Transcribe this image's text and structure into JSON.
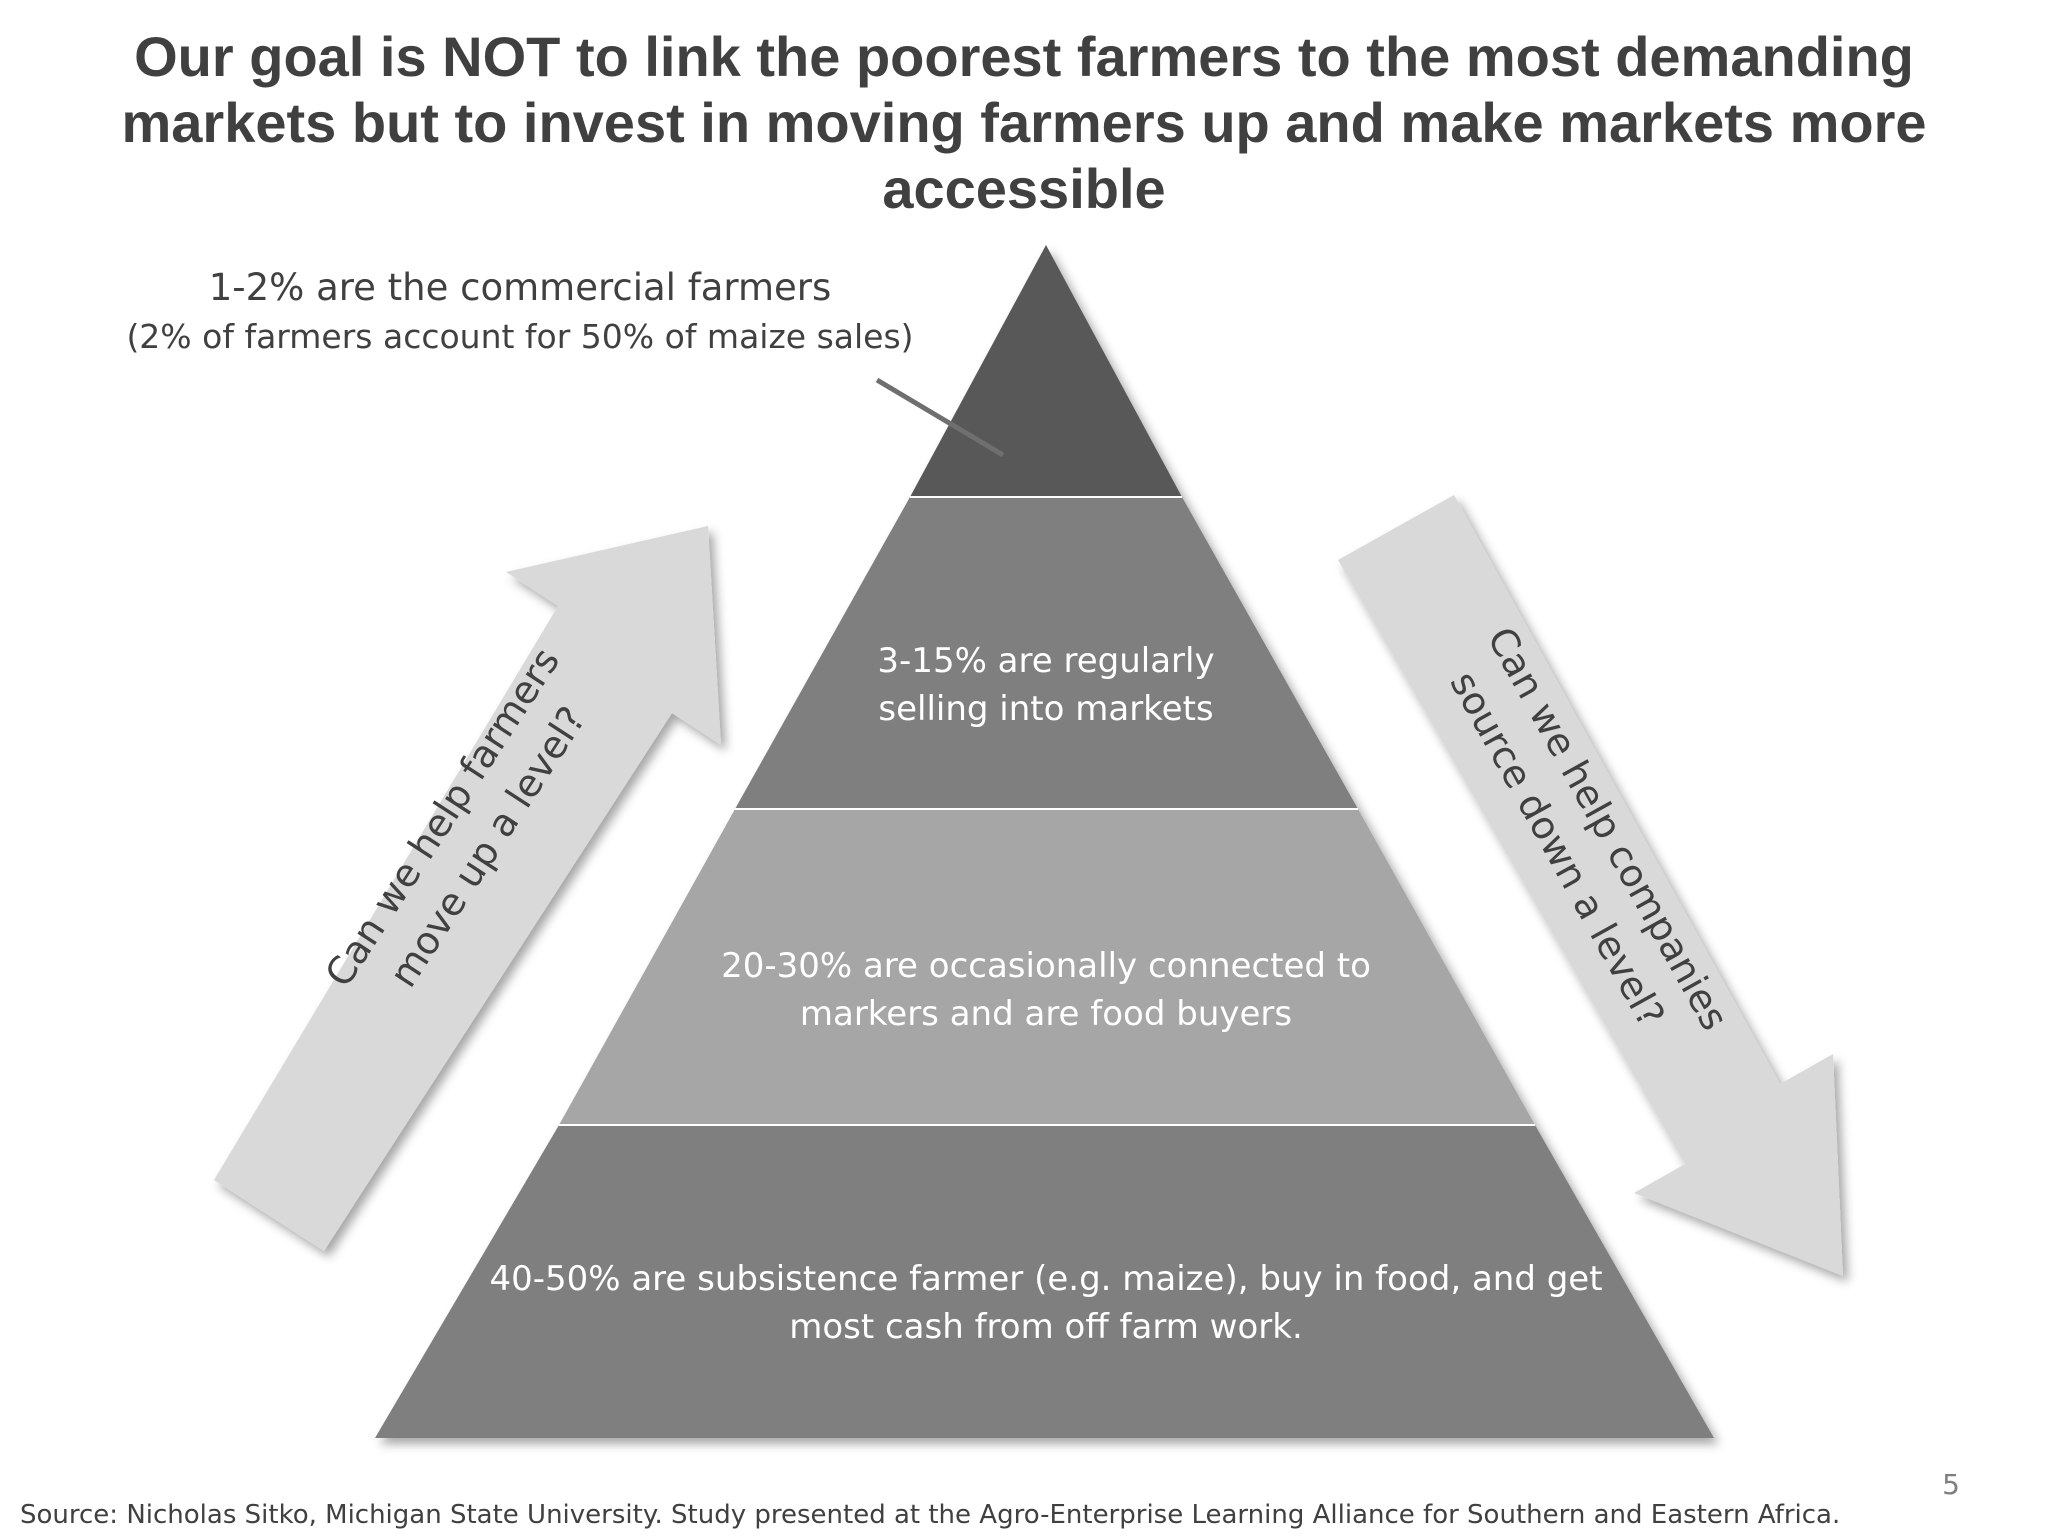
{
  "slide": {
    "title": "Our goal is NOT to link the poorest farmers to the most demanding markets but to invest in moving farmers up and make markets more accessible",
    "page_number": "5",
    "source": "Source: Nicholas Sitko, Michigan State University. Study presented at the Agro-Enterprise Learning Alliance for Southern and Eastern Africa."
  },
  "callout": {
    "line1": "1-2% are the commercial farmers",
    "line2": "(2% of farmers account for 50% of maize sales)"
  },
  "pyramid": {
    "tiers": [
      {
        "lines": [
          "3-15% are regularly",
          "selling into markets"
        ]
      },
      {
        "lines": [
          "20-30% are occasionally connected to",
          "markers and are food buyers"
        ]
      },
      {
        "lines": [
          "40-50% are subsistence farmer (e.g. maize), buy in food, and get",
          "most cash from off farm work."
        ]
      }
    ]
  },
  "arrows": {
    "up": {
      "lines": [
        "Can we help farmers",
        "move up a level?"
      ]
    },
    "down": {
      "lines": [
        "Can we help companies",
        "source down a level?"
      ]
    }
  },
  "colors": {
    "title_text": "#404040",
    "tier_top": "#595959",
    "tier_2": "#7f7f7f",
    "tier_3": "#a6a6a6",
    "tier_bottom": "#7f7f7f",
    "arrow_fill": "#d9d9d9"
  }
}
